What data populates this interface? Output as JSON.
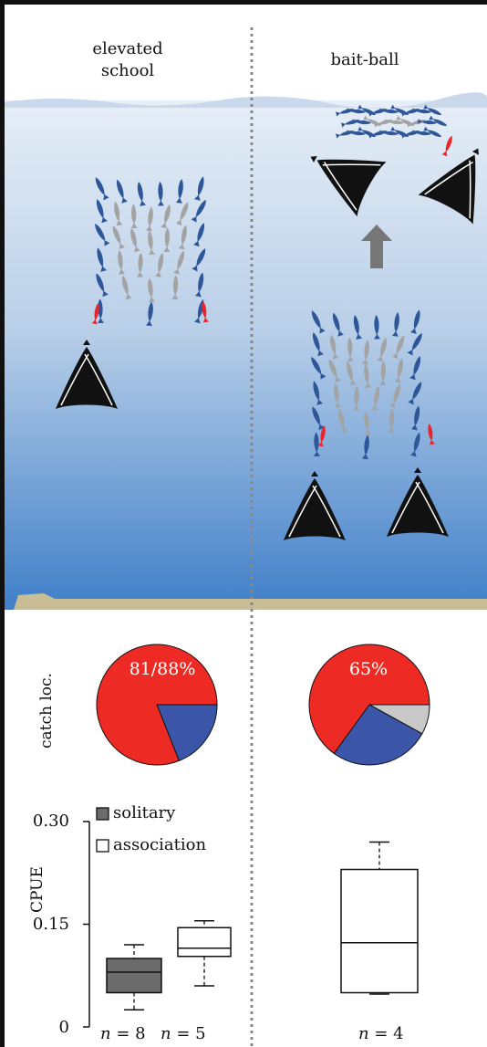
{
  "columns": {
    "left_title_line1": "elevated",
    "left_title_line2": "school",
    "right_title": "bait-ball"
  },
  "pies": {
    "row_label": "catch loc.",
    "left": {
      "label": "81/88%",
      "slices": [
        {
          "value": 81,
          "color": "#ee2a24"
        },
        {
          "value": 19,
          "color": "#3b56a8"
        }
      ]
    },
    "right": {
      "label": "65%",
      "slices": [
        {
          "value": 65,
          "color": "#ee2a24"
        },
        {
          "value": 27,
          "color": "#3b56a8"
        },
        {
          "value": 8,
          "color": "#c9c9c9"
        }
      ]
    }
  },
  "chart_data": {
    "type": "box",
    "ylabel": "CPUE",
    "ylim": [
      0,
      0.3
    ],
    "yticks": [
      "0.30",
      "0.15",
      "0"
    ],
    "legend": [
      {
        "name": "solitary",
        "color": "#6b6b6b"
      },
      {
        "name": "association",
        "color": "#ffffff"
      }
    ],
    "boxes": [
      {
        "group": "elevated school",
        "series": "solitary",
        "min": 0.025,
        "q1": 0.05,
        "median": 0.08,
        "q3": 0.1,
        "max": 0.12,
        "n_label": "8"
      },
      {
        "group": "elevated school",
        "series": "association",
        "min": 0.06,
        "q1": 0.103,
        "median": 0.115,
        "q3": 0.145,
        "max": 0.155,
        "n_label": "5"
      },
      {
        "group": "bait-ball",
        "series": "association",
        "min": 0.048,
        "q1": 0.05,
        "median": 0.123,
        "q3": 0.23,
        "max": 0.27,
        "n_label": "4"
      }
    ]
  },
  "colors": {
    "water_top": "#dbe6f3",
    "water_bottom": "#4a86cc",
    "surface": "#c6d6e9",
    "seafloor": "#c8bd94",
    "shark": "#111111",
    "fish_blue": "#2e5799",
    "fish_grey": "#a3a3a3",
    "fish_red": "#e8262b",
    "arrow": "#777777"
  },
  "icons": [
    "shark-icon",
    "fish-icon",
    "up-arrow-icon"
  ]
}
